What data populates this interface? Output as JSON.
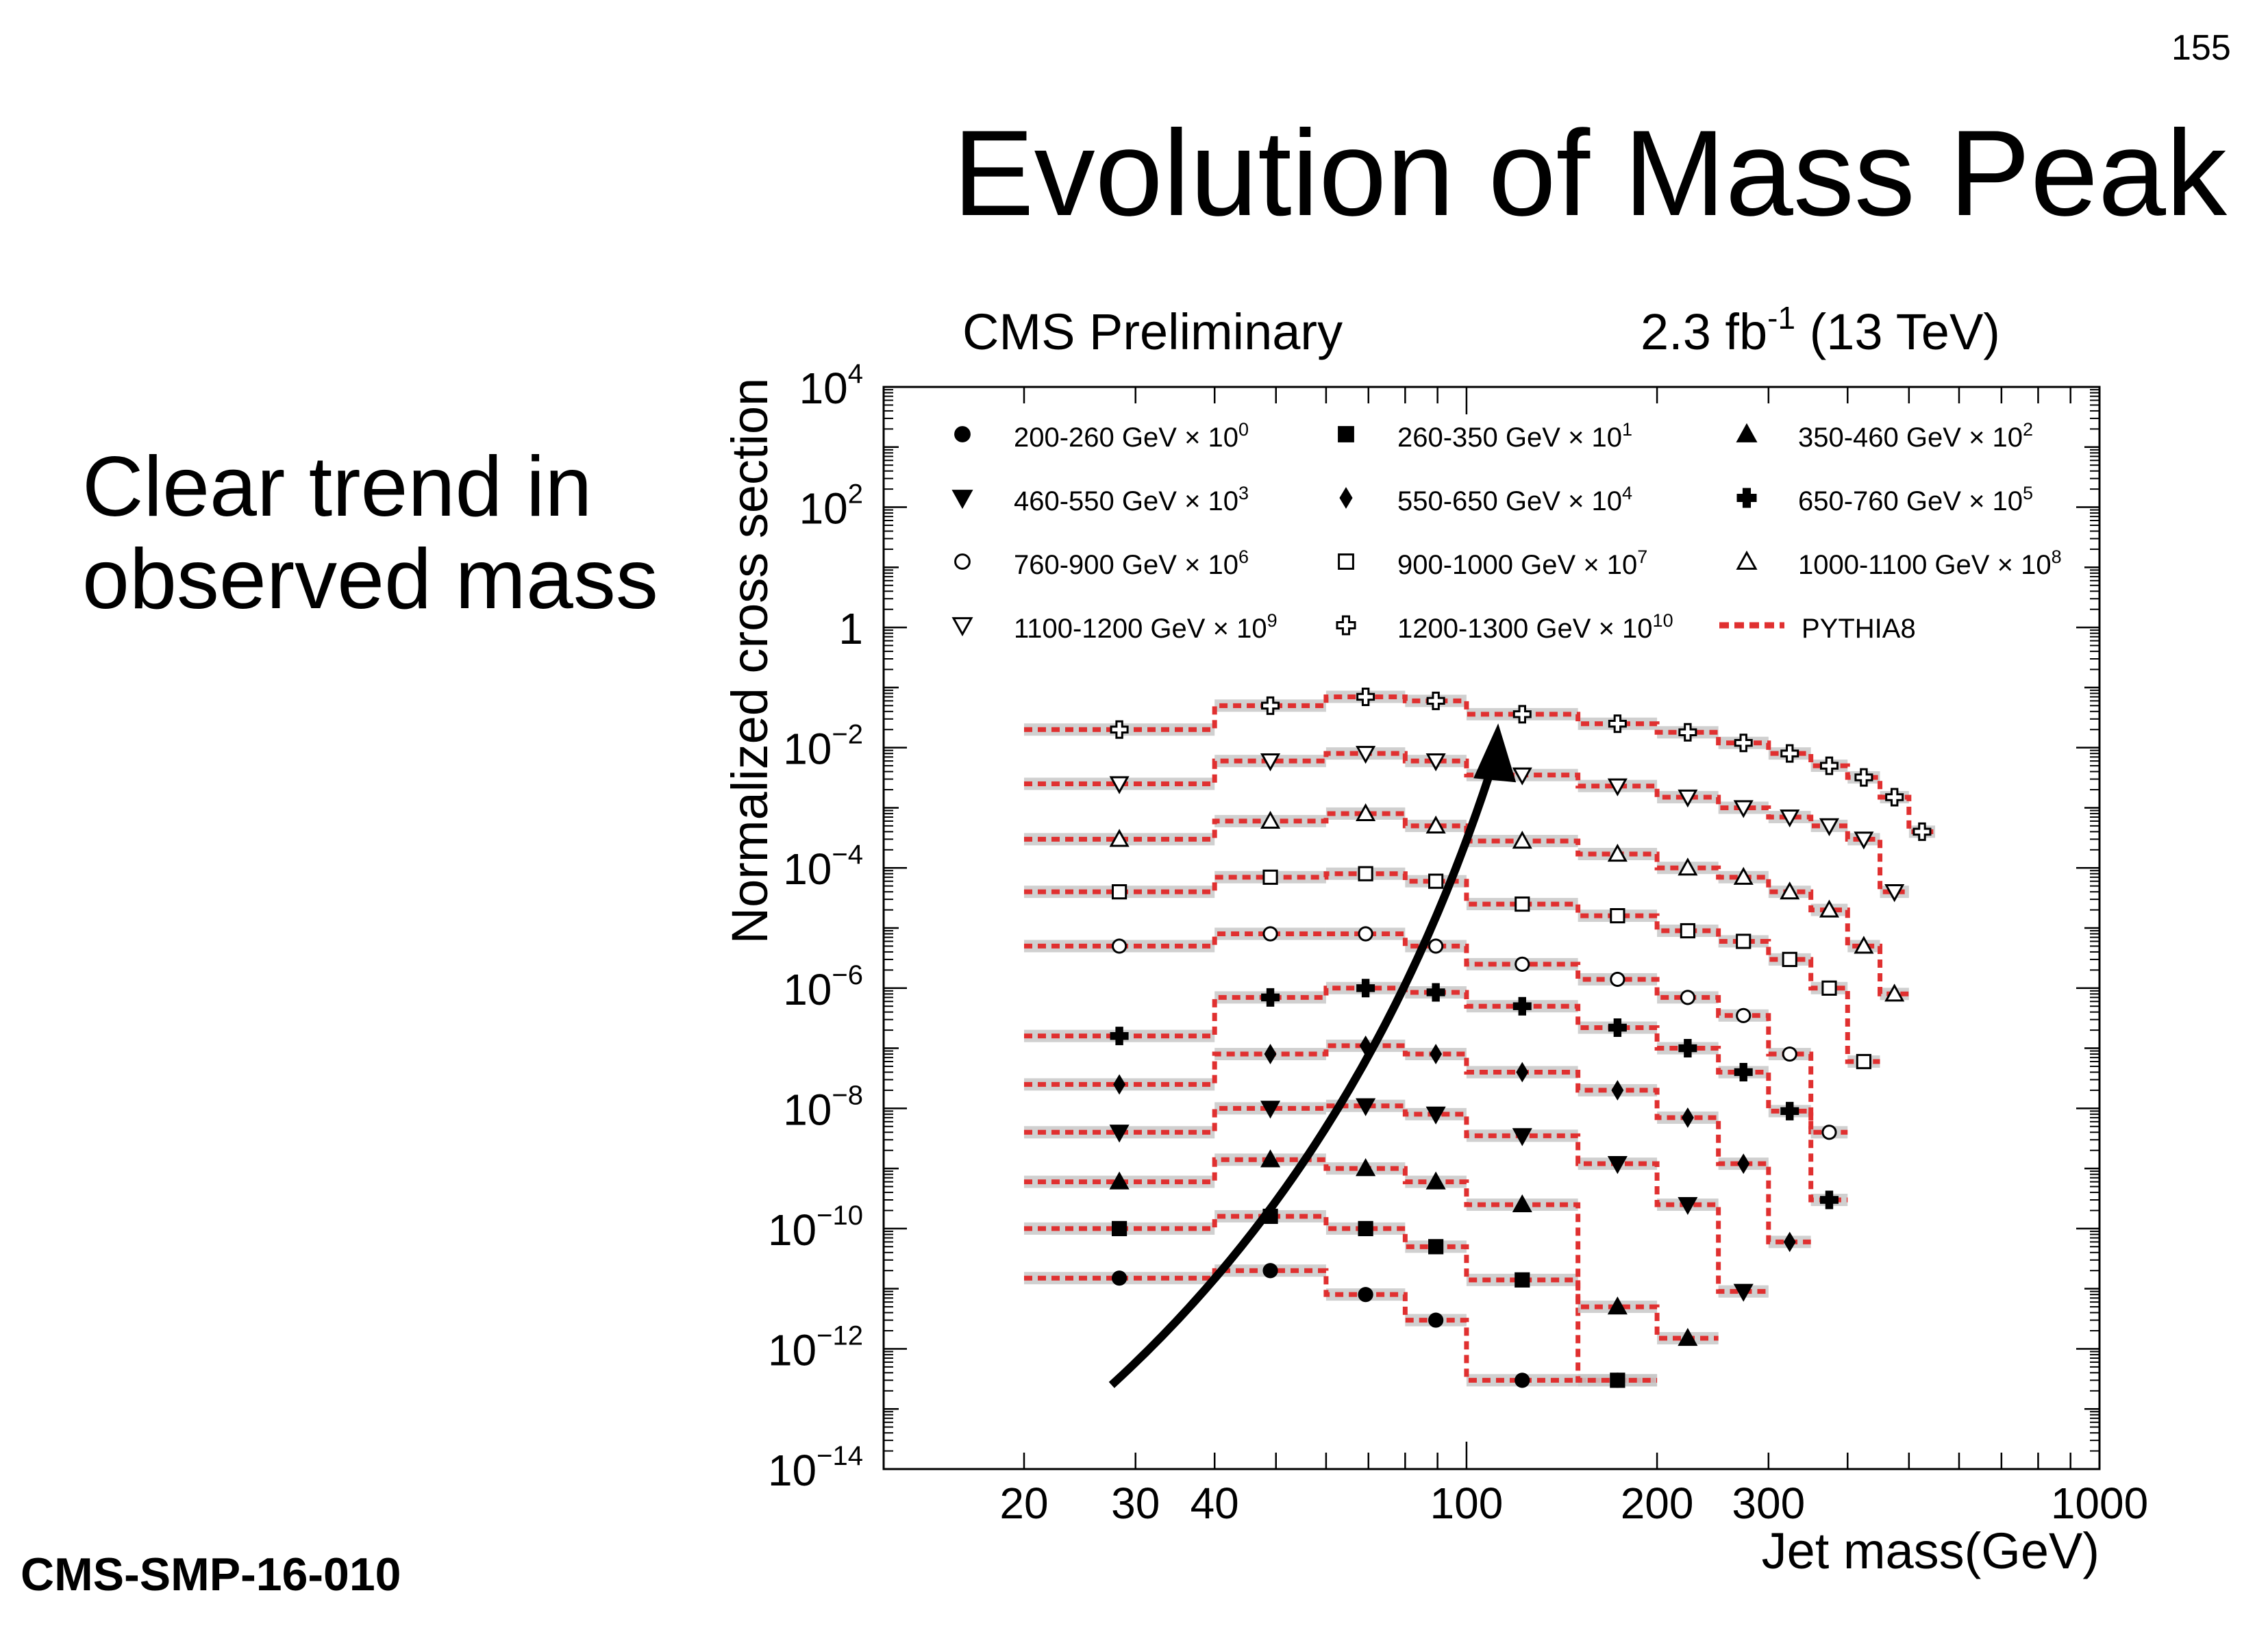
{
  "slide": {
    "page_number": "155",
    "title": "Evolution of Mass Peak",
    "side_text": [
      "Clear trend in",
      "observed mass"
    ],
    "reference": "CMS-SMP-16-010"
  },
  "colors": {
    "pythia": "#e03030",
    "band": "#c8c8c8",
    "ink": "#000000"
  },
  "chart_data": {
    "type": "line",
    "title_left": "CMS Preliminary",
    "title_right_prefix": "2.3 fb",
    "title_right_sup": "-1",
    "title_right_suffix": " (13 TeV)",
    "xlabel": "Jet mass(GeV)",
    "ylabel": "Normalized cross section",
    "x_scale": "log",
    "y_scale": "log",
    "xlim": [
      12,
      1000
    ],
    "ylim": [
      1e-14,
      10000.0
    ],
    "x_ticks": [
      {
        "v": 20,
        "label": "20"
      },
      {
        "v": 30,
        "label": "30"
      },
      {
        "v": 40,
        "label": "40"
      },
      {
        "v": 100,
        "label": "100"
      },
      {
        "v": 200,
        "label": "200"
      },
      {
        "v": 300,
        "label": "300"
      },
      {
        "v": 1000,
        "label": "1000"
      }
    ],
    "y_ticks": [
      {
        "exp": 4,
        "base": "10",
        "sup": "4"
      },
      {
        "exp": 2,
        "base": "10",
        "sup": "2"
      },
      {
        "exp": 0,
        "base": "1",
        "sup": ""
      },
      {
        "exp": -2,
        "base": "10",
        "sup": "−2"
      },
      {
        "exp": -4,
        "base": "10",
        "sup": "−4"
      },
      {
        "exp": -6,
        "base": "10",
        "sup": "−6"
      },
      {
        "exp": -8,
        "base": "10",
        "sup": "−8"
      },
      {
        "exp": -10,
        "base": "10",
        "sup": "−10"
      },
      {
        "exp": -12,
        "base": "10",
        "sup": "−12"
      },
      {
        "exp": -14,
        "base": "10",
        "sup": "−14"
      }
    ],
    "legend_position": "top",
    "legend_mc_label": "PYTHIA8",
    "annotation": "arrow rising from lower-left to upper-middle, following the shift of the mass peak",
    "bin_edges": [
      20,
      40,
      60,
      80,
      100,
      150,
      200,
      250,
      300,
      350,
      400,
      450,
      500,
      550,
      600
    ],
    "series": [
      {
        "name": "200-260 GeV",
        "scale_base": "10",
        "scale_exp": "0",
        "marker": "circle-filled",
        "values": [
          1.5e-11,
          2e-11,
          8e-12,
          3e-12,
          3e-13,
          3e-13
        ]
      },
      {
        "name": "260-350 GeV",
        "scale_base": "10",
        "scale_exp": "1",
        "marker": "square-filled",
        "values": [
          1e-10,
          1.6e-10,
          1e-10,
          5e-11,
          1.4e-11,
          3e-13
        ]
      },
      {
        "name": "350-460 GeV",
        "scale_base": "10",
        "scale_exp": "2",
        "marker": "triangle-up-filled",
        "values": [
          6e-10,
          1.4e-09,
          1e-09,
          6e-10,
          2.5e-10,
          5e-12,
          1.5e-12
        ]
      },
      {
        "name": "460-550 GeV",
        "scale_base": "10",
        "scale_exp": "3",
        "marker": "triangle-down-filled",
        "values": [
          4e-09,
          1e-08,
          1.1e-08,
          8e-09,
          3.5e-09,
          1.2e-09,
          2.5e-10,
          9e-12
        ]
      },
      {
        "name": "550-650 GeV",
        "scale_base": "10",
        "scale_exp": "4",
        "marker": "diamond-filled",
        "values": [
          2.5e-08,
          8e-08,
          1.1e-07,
          8e-08,
          4e-08,
          2e-08,
          7e-09,
          1.2e-09,
          6e-11
        ]
      },
      {
        "name": "650-760 GeV",
        "scale_base": "10",
        "scale_exp": "5",
        "marker": "cross-filled",
        "values": [
          1.6e-07,
          7e-07,
          1e-06,
          8.5e-07,
          5e-07,
          2.2e-07,
          1e-07,
          4e-08,
          9e-09,
          3e-10
        ]
      },
      {
        "name": "760-900 GeV",
        "scale_base": "10",
        "scale_exp": "6",
        "marker": "circle-open",
        "values": [
          5e-06,
          8e-06,
          8e-06,
          5e-06,
          2.5e-06,
          1.4e-06,
          7e-07,
          3.5e-07,
          8e-08,
          4e-09
        ]
      },
      {
        "name": "900-1000 GeV",
        "scale_base": "10",
        "scale_exp": "7",
        "marker": "square-open",
        "values": [
          4e-05,
          7e-05,
          8e-05,
          6e-05,
          2.5e-05,
          1.6e-05,
          9e-06,
          6e-06,
          3e-06,
          1e-06,
          6e-08
        ]
      },
      {
        "name": "1000-1100 GeV",
        "scale_base": "10",
        "scale_exp": "8",
        "marker": "triangle-up-open",
        "values": [
          0.0003,
          0.0006,
          0.0008,
          0.0005,
          0.00028,
          0.00017,
          0.0001,
          7e-05,
          4e-05,
          2e-05,
          5e-06,
          8e-07
        ]
      },
      {
        "name": "1100-1200 GeV",
        "scale_base": "10",
        "scale_exp": "9",
        "marker": "triangle-down-open",
        "values": [
          0.0025,
          0.006,
          0.008,
          0.006,
          0.0035,
          0.0023,
          0.0015,
          0.001,
          0.0007,
          0.0005,
          0.0003,
          4e-05
        ]
      },
      {
        "name": "1200-1300 GeV",
        "scale_base": "10",
        "scale_exp": "10",
        "marker": "cross-open",
        "values": [
          0.02,
          0.05,
          0.07,
          0.06,
          0.036,
          0.025,
          0.018,
          0.012,
          0.008,
          0.005,
          0.0032,
          0.0015,
          0.0004
        ]
      }
    ]
  }
}
